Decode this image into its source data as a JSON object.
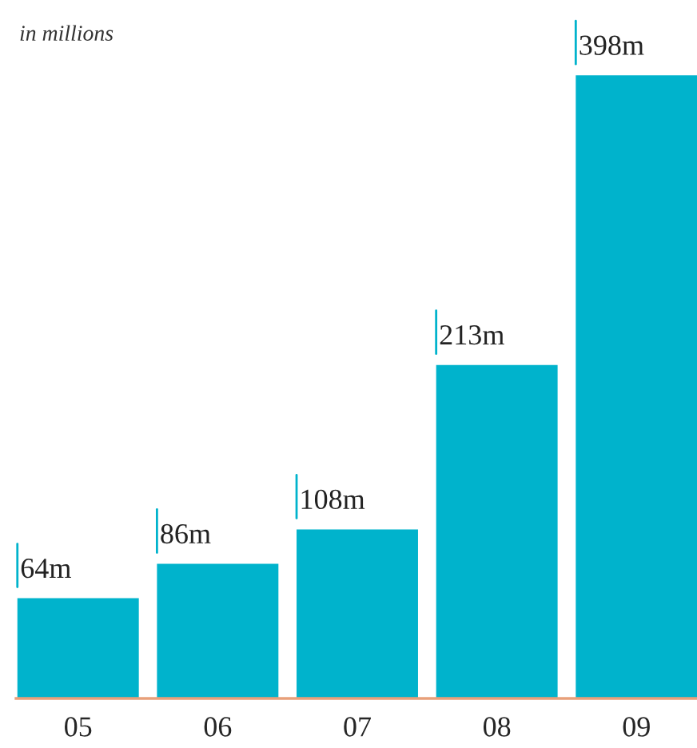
{
  "chart_data": {
    "type": "bar",
    "categories": [
      "05",
      "06",
      "07",
      "08",
      "09"
    ],
    "values": [
      64,
      86,
      108,
      213,
      398
    ],
    "value_labels": [
      "64m",
      "86m",
      "108m",
      "213m",
      "398m"
    ],
    "color": "#00b3cc",
    "annotations": [
      "in millions"
    ],
    "grid": false,
    "legend": false
  }
}
